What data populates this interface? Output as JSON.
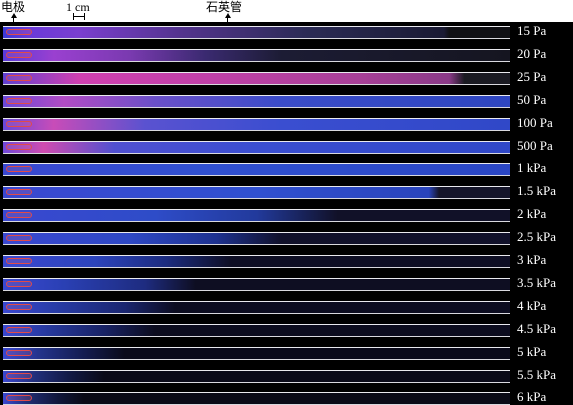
{
  "labels": {
    "electrode": "电极",
    "scale": "1 cm",
    "quartz_tube": "石英管"
  },
  "rows": [
    {
      "pressure": "15 Pa",
      "glow": "linear-gradient(90deg,#3a3ad8 0%,#6a3ad8 5%,#7a3fcf 15%,#54348e 35%,#2b2b55 60%,#1a1a33 87%,#101014 88%)",
      "extent": 1.0
    },
    {
      "pressure": "20 Pa",
      "glow": "linear-gradient(90deg,#5a3ad8 0%,#9a40d0 10%,#7a3ab0 25%,#3a2a70 40%,#1c1c34 55%,#151520 100%)",
      "extent": 1.0
    },
    {
      "pressure": "25 Pa",
      "glow": "linear-gradient(90deg,#6040d0 0%,#d040b0 15%,#c040a8 40%,#a84098 70%,#8a3a88 88%,#1a1a22 91%)",
      "extent": 1.0
    },
    {
      "pressure": "50 Pa",
      "glow": "linear-gradient(90deg,#6a48d8 0%,#b24cc4 12%,#6a50c8 30%,#3a4cc8 55%,#2e46c0 100%)",
      "extent": 1.0
    },
    {
      "pressure": "100 Pa",
      "glow": "linear-gradient(90deg,#6a48d8 0%,#c84cb8 10%,#5a52d0 28%,#3a4ed0 55%,#3048c8 100%)",
      "extent": 1.0
    },
    {
      "pressure": "500 Pa",
      "glow": "linear-gradient(90deg,#7048d8 0%,#d04cb0 8%,#5050d0 22%,#3a4ed0 50%,#3048c8 100%)",
      "extent": 1.0
    },
    {
      "pressure": "1 kPa",
      "glow": "linear-gradient(90deg,#3a48d0 0%,#3050d0 40%,#2a46c4 100%)",
      "extent": 1.0
    },
    {
      "pressure": "1.5 kPa",
      "glow": "linear-gradient(90deg,#3a48d0 0%,#3050d0 50%,#2a44bc 84%,#15152a 86%)",
      "extent": 1.0
    },
    {
      "pressure": "2 kPa",
      "glow": "linear-gradient(90deg,#3a48d0 0%,#2e4cc8 30%,#223a9c 50%,#111128 66%)",
      "extent": 1.0
    },
    {
      "pressure": "2.5 kPa",
      "glow": "linear-gradient(90deg,#3a48d0 0%,#2e48c4 25%,#1e3290 42%,#10102a 55%)",
      "extent": 1.0
    },
    {
      "pressure": "3 kPa",
      "glow": "linear-gradient(90deg,#3a48d0 0%,#2c44bc 18%,#1c2c80 32%,#0e0e24 45%)",
      "extent": 1.0
    },
    {
      "pressure": "3.5 kPa",
      "glow": "linear-gradient(90deg,#3a48d0 0%,#2a40b4 12%,#1e2c80 28%,#0e0e22 38%)",
      "extent": 1.0
    },
    {
      "pressure": "4 kPa",
      "glow": "linear-gradient(90deg,#3a48d0 0%,#283ca8 10%,#1a2670 24%,#0c0c20 34%)",
      "extent": 1.0
    },
    {
      "pressure": "4.5 kPa",
      "glow": "linear-gradient(90deg,#3a48d0 0%,#26389c 9%,#182264 20%,#0c0c1e 30%)",
      "extent": 1.0
    },
    {
      "pressure": "5 kPa",
      "glow": "linear-gradient(90deg,#3a48d0 0%,#24348c 7%,#141c50 16%,#0a0a1a 24%)",
      "extent": 1.0
    },
    {
      "pressure": "5.5 kPa",
      "glow": "linear-gradient(90deg,#3a48d0 0%,#22307e 6%,#121a46 13%,#0a0a18 20%)",
      "extent": 1.0
    },
    {
      "pressure": "6 kPa",
      "glow": "linear-gradient(90deg,#3a48d0 0%,#202c70 5%,#10163a 11%,#0a0a16 16%)",
      "extent": 1.0
    }
  ],
  "colors": {
    "background": "#000000",
    "tube_wall": "#e9e9ee",
    "electrode": "#e04b4b",
    "label_text": "#ffffff"
  }
}
